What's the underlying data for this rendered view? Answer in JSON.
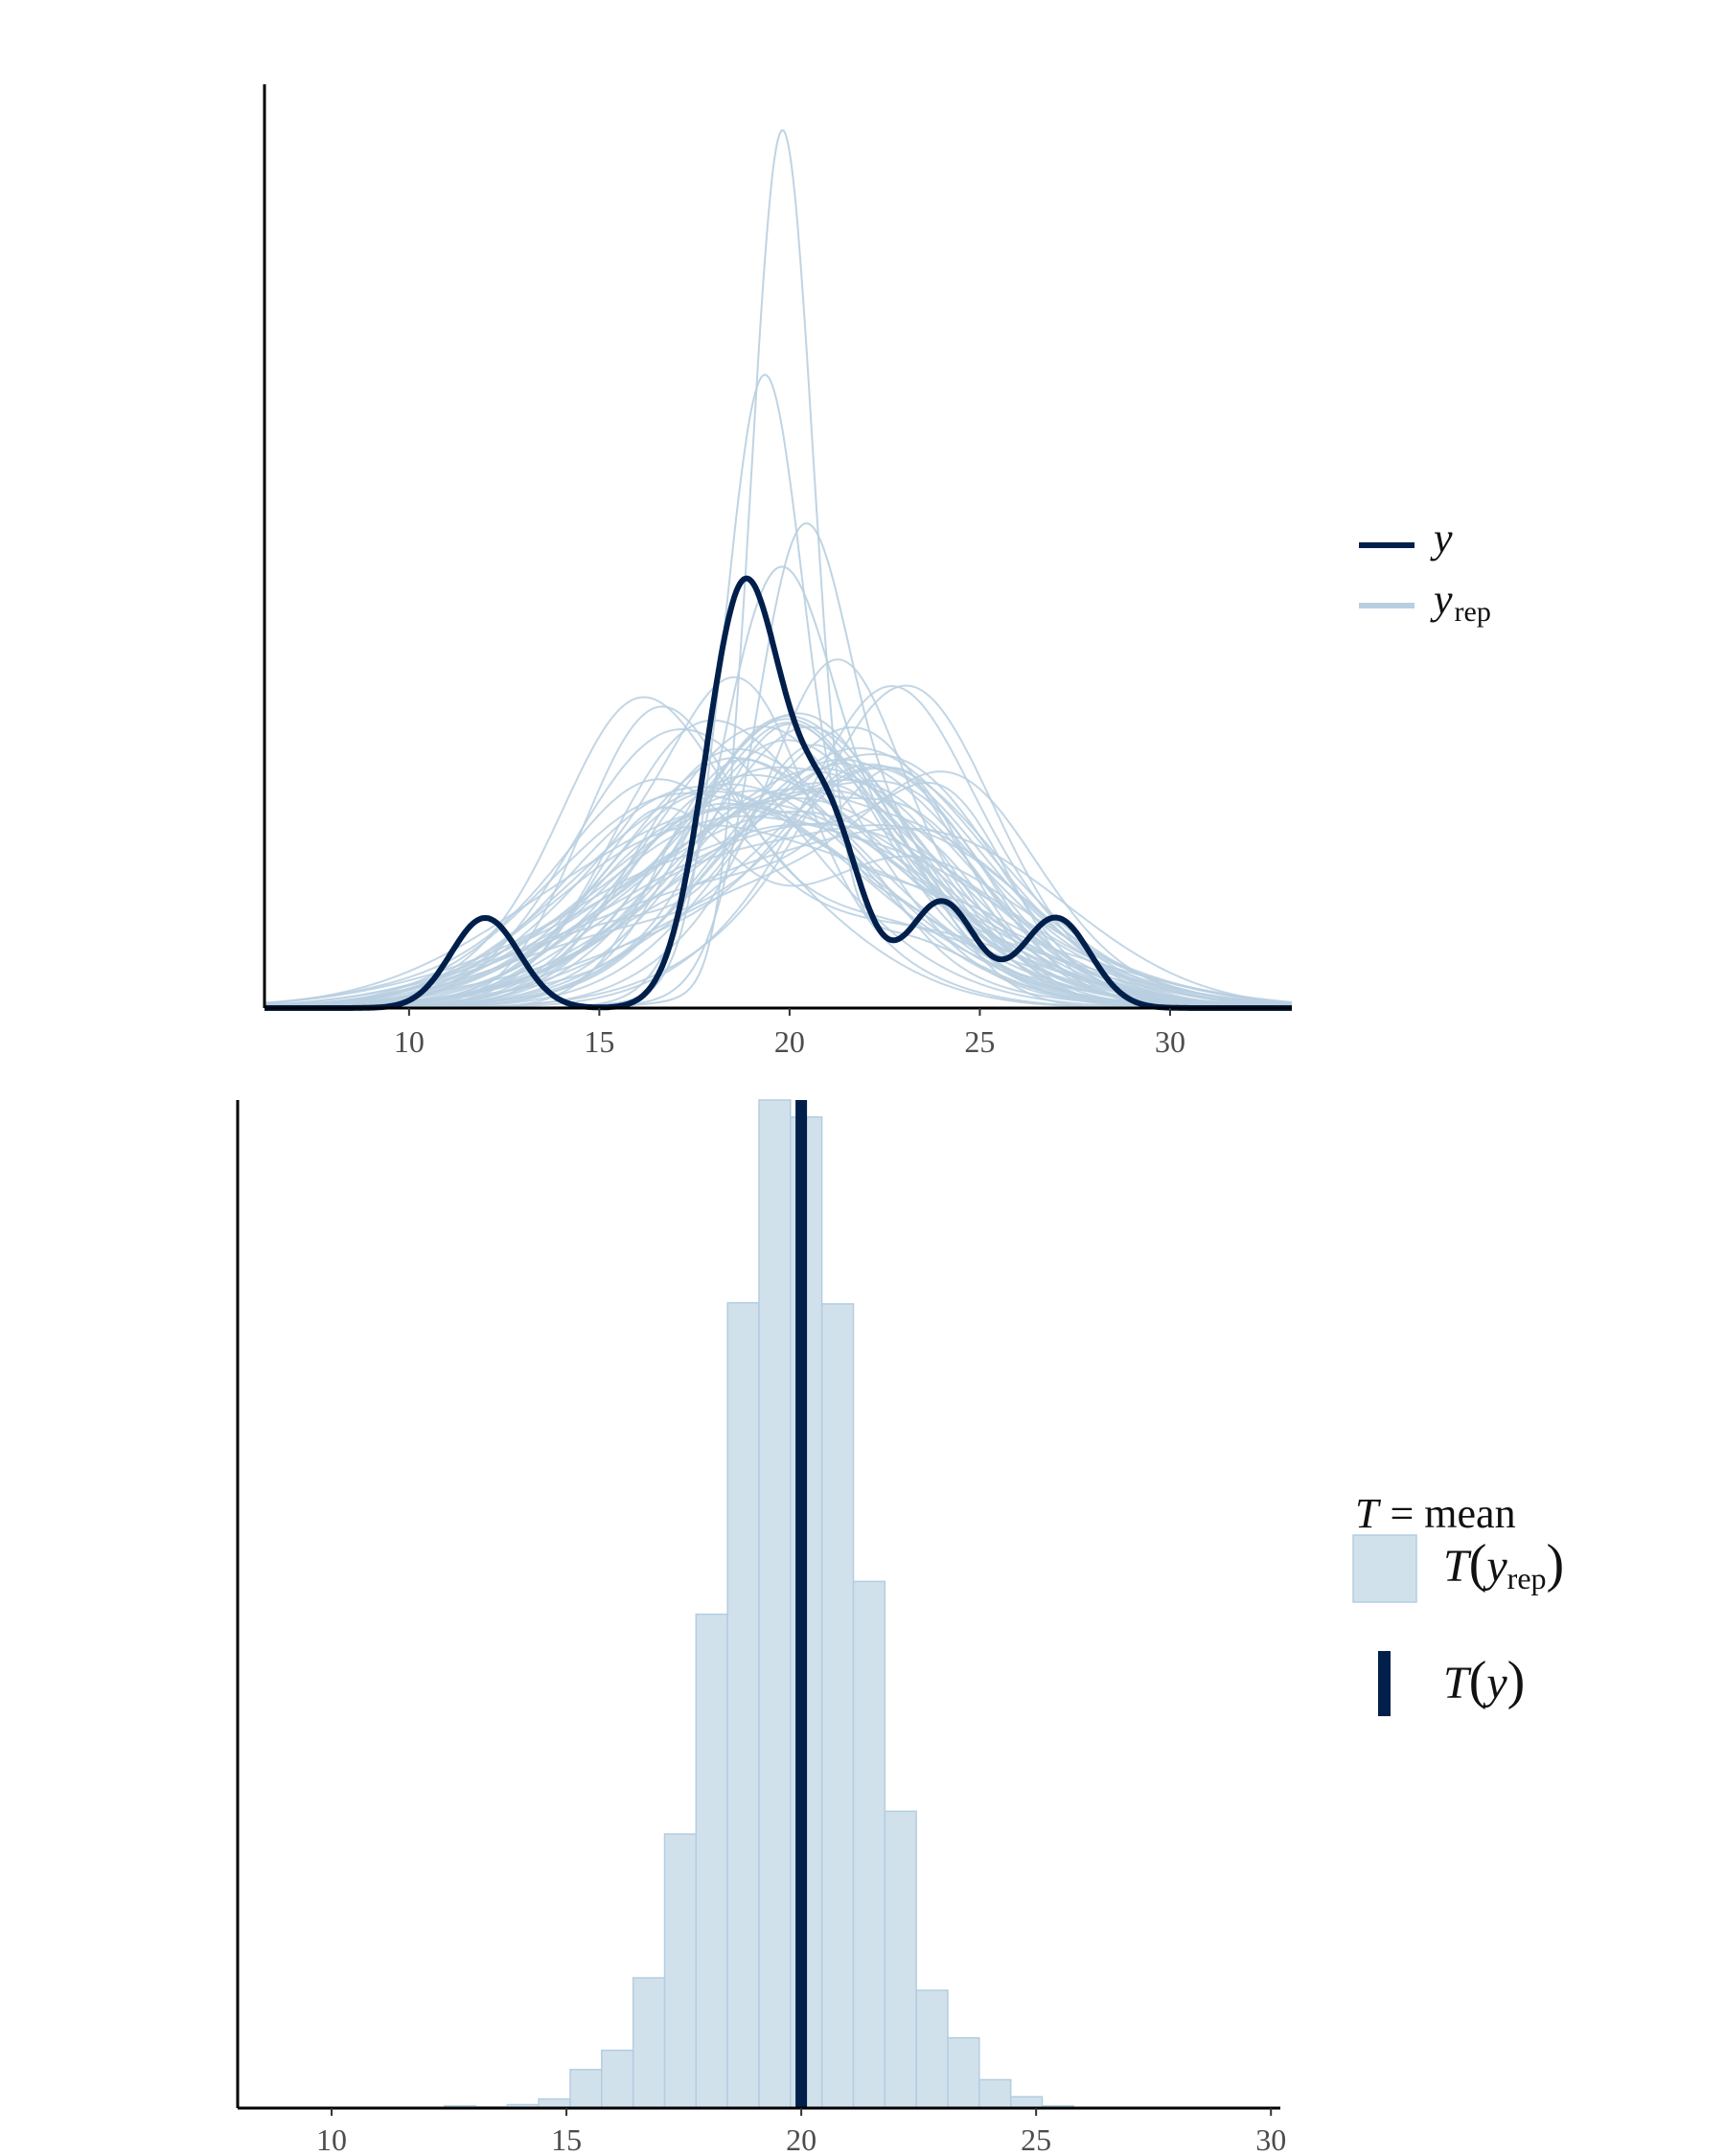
{
  "colors": {
    "y": "#011f4b",
    "yrep_line": "#b8cfe0",
    "yrep_fill": "#d1e1ec",
    "yrep_fill_stroke": "#b3cde0",
    "axis": "#000000"
  },
  "chart_data": [
    {
      "type": "line",
      "x_ticks": [
        "10",
        "15",
        "20",
        "25",
        "30"
      ],
      "xlim": [
        6.2,
        33.2
      ],
      "y_axis_values_shown": false,
      "grid": false,
      "legend_position": "right",
      "legend": [
        {
          "symbol": "line",
          "var": "y",
          "sub": "",
          "color": "#011f4b"
        },
        {
          "symbol": "line",
          "var": "y",
          "sub": "rep",
          "color": "#b8cfe0"
        }
      ],
      "observed": {
        "name": "y",
        "peaks": [
          {
            "mu": 12.0,
            "sd": 0.9,
            "w": 0.085
          },
          {
            "mu": 18.8,
            "sd": 1.0,
            "w": 0.44
          },
          {
            "mu": 21.0,
            "sd": 0.9,
            "w": 0.17
          },
          {
            "mu": 24.0,
            "sd": 0.9,
            "w": 0.1
          },
          {
            "mu": 27.0,
            "sd": 0.9,
            "w": 0.085
          }
        ],
        "peak_density": 0.2
      },
      "replicates": {
        "name": "y_rep",
        "count": 60,
        "max_density": 0.43,
        "sharp_peaks": [
          {
            "mu": 19.8,
            "sd": 0.8,
            "height": 0.43
          },
          {
            "mu": 19.3,
            "sd": 1.0,
            "height": 0.29
          },
          {
            "mu": 20.3,
            "sd": 1.2,
            "height": 0.2
          },
          {
            "mu": 19.6,
            "sd": 1.4,
            "height": 0.18
          }
        ]
      }
    },
    {
      "type": "bar",
      "x_ticks": [
        "10",
        "15",
        "20",
        "25",
        "30"
      ],
      "xlim": [
        8.0,
        30.2
      ],
      "y_axis_values_shown": false,
      "grid": false,
      "bin_width": 0.67,
      "bin_starts": [
        12.4,
        13.07,
        13.74,
        14.41,
        15.08,
        15.75,
        16.42,
        17.09,
        17.76,
        18.43,
        19.1,
        19.77,
        20.44,
        21.11,
        21.78,
        22.45,
        23.12,
        23.79,
        24.46,
        25.13
      ],
      "counts": [
        2,
        1,
        3,
        8,
        34,
        51,
        115,
        242,
        436,
        711,
        890,
        875,
        710,
        465,
        262,
        104,
        62,
        25,
        10,
        2
      ],
      "ylim": [
        0,
        890
      ],
      "observed_T_y": 20.0,
      "legend_title_var": "T",
      "legend_title_eq": "= mean",
      "legend": [
        {
          "symbol": "rect",
          "fn": "T",
          "var": "y",
          "sub": "rep",
          "color": "#d1e1ec"
        },
        {
          "symbol": "vline",
          "fn": "T",
          "var": "y",
          "sub": "",
          "color": "#011f4b"
        }
      ]
    }
  ]
}
